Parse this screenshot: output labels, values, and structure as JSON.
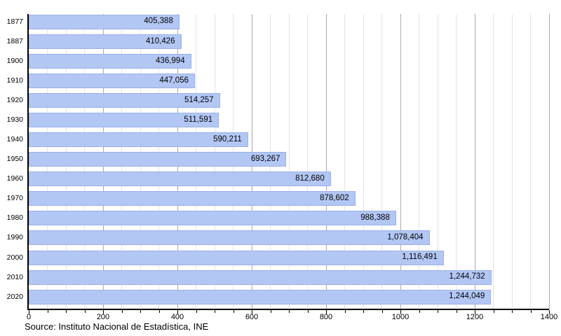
{
  "chart_data": {
    "type": "bar",
    "orientation": "horizontal",
    "title": "",
    "xlabel": "",
    "ylabel": "",
    "categories": [
      "1877",
      "1887",
      "1900",
      "1910",
      "1920",
      "1930",
      "1940",
      "1950",
      "1960",
      "1970",
      "1980",
      "1990",
      "2000",
      "2010",
      "2020"
    ],
    "values": [
      405388,
      410426,
      436994,
      447056,
      514257,
      511591,
      590211,
      693267,
      812680,
      878602,
      988388,
      1078404,
      1116491,
      1244732,
      1244049
    ],
    "value_labels": [
      "405,388",
      "410,426",
      "436,994",
      "447,056",
      "514,257",
      "511,591",
      "590,211",
      "693,267",
      "812,680",
      "878,602",
      "988,388",
      "1,078,404",
      "1,116,491",
      "1,244,732",
      "1,244,049"
    ],
    "x_axis": {
      "min": 0,
      "max": 1400,
      "major_step": 200,
      "minor_step": 50,
      "tick_labels": [
        "0",
        "200",
        "400",
        "600",
        "800",
        "1000",
        "1200",
        "1400"
      ],
      "values_divisor": 1000
    },
    "grid": true,
    "legend": false
  },
  "source_note": "Source: Instituto Nacional de Estadística, INE",
  "colors": {
    "bar_fill": "#b3c7f5",
    "bar_border": "#9cb0e4",
    "grid_minor": "#e4e4e4",
    "grid_major": "#ababab",
    "axis": "#000000",
    "text": "#000000"
  }
}
